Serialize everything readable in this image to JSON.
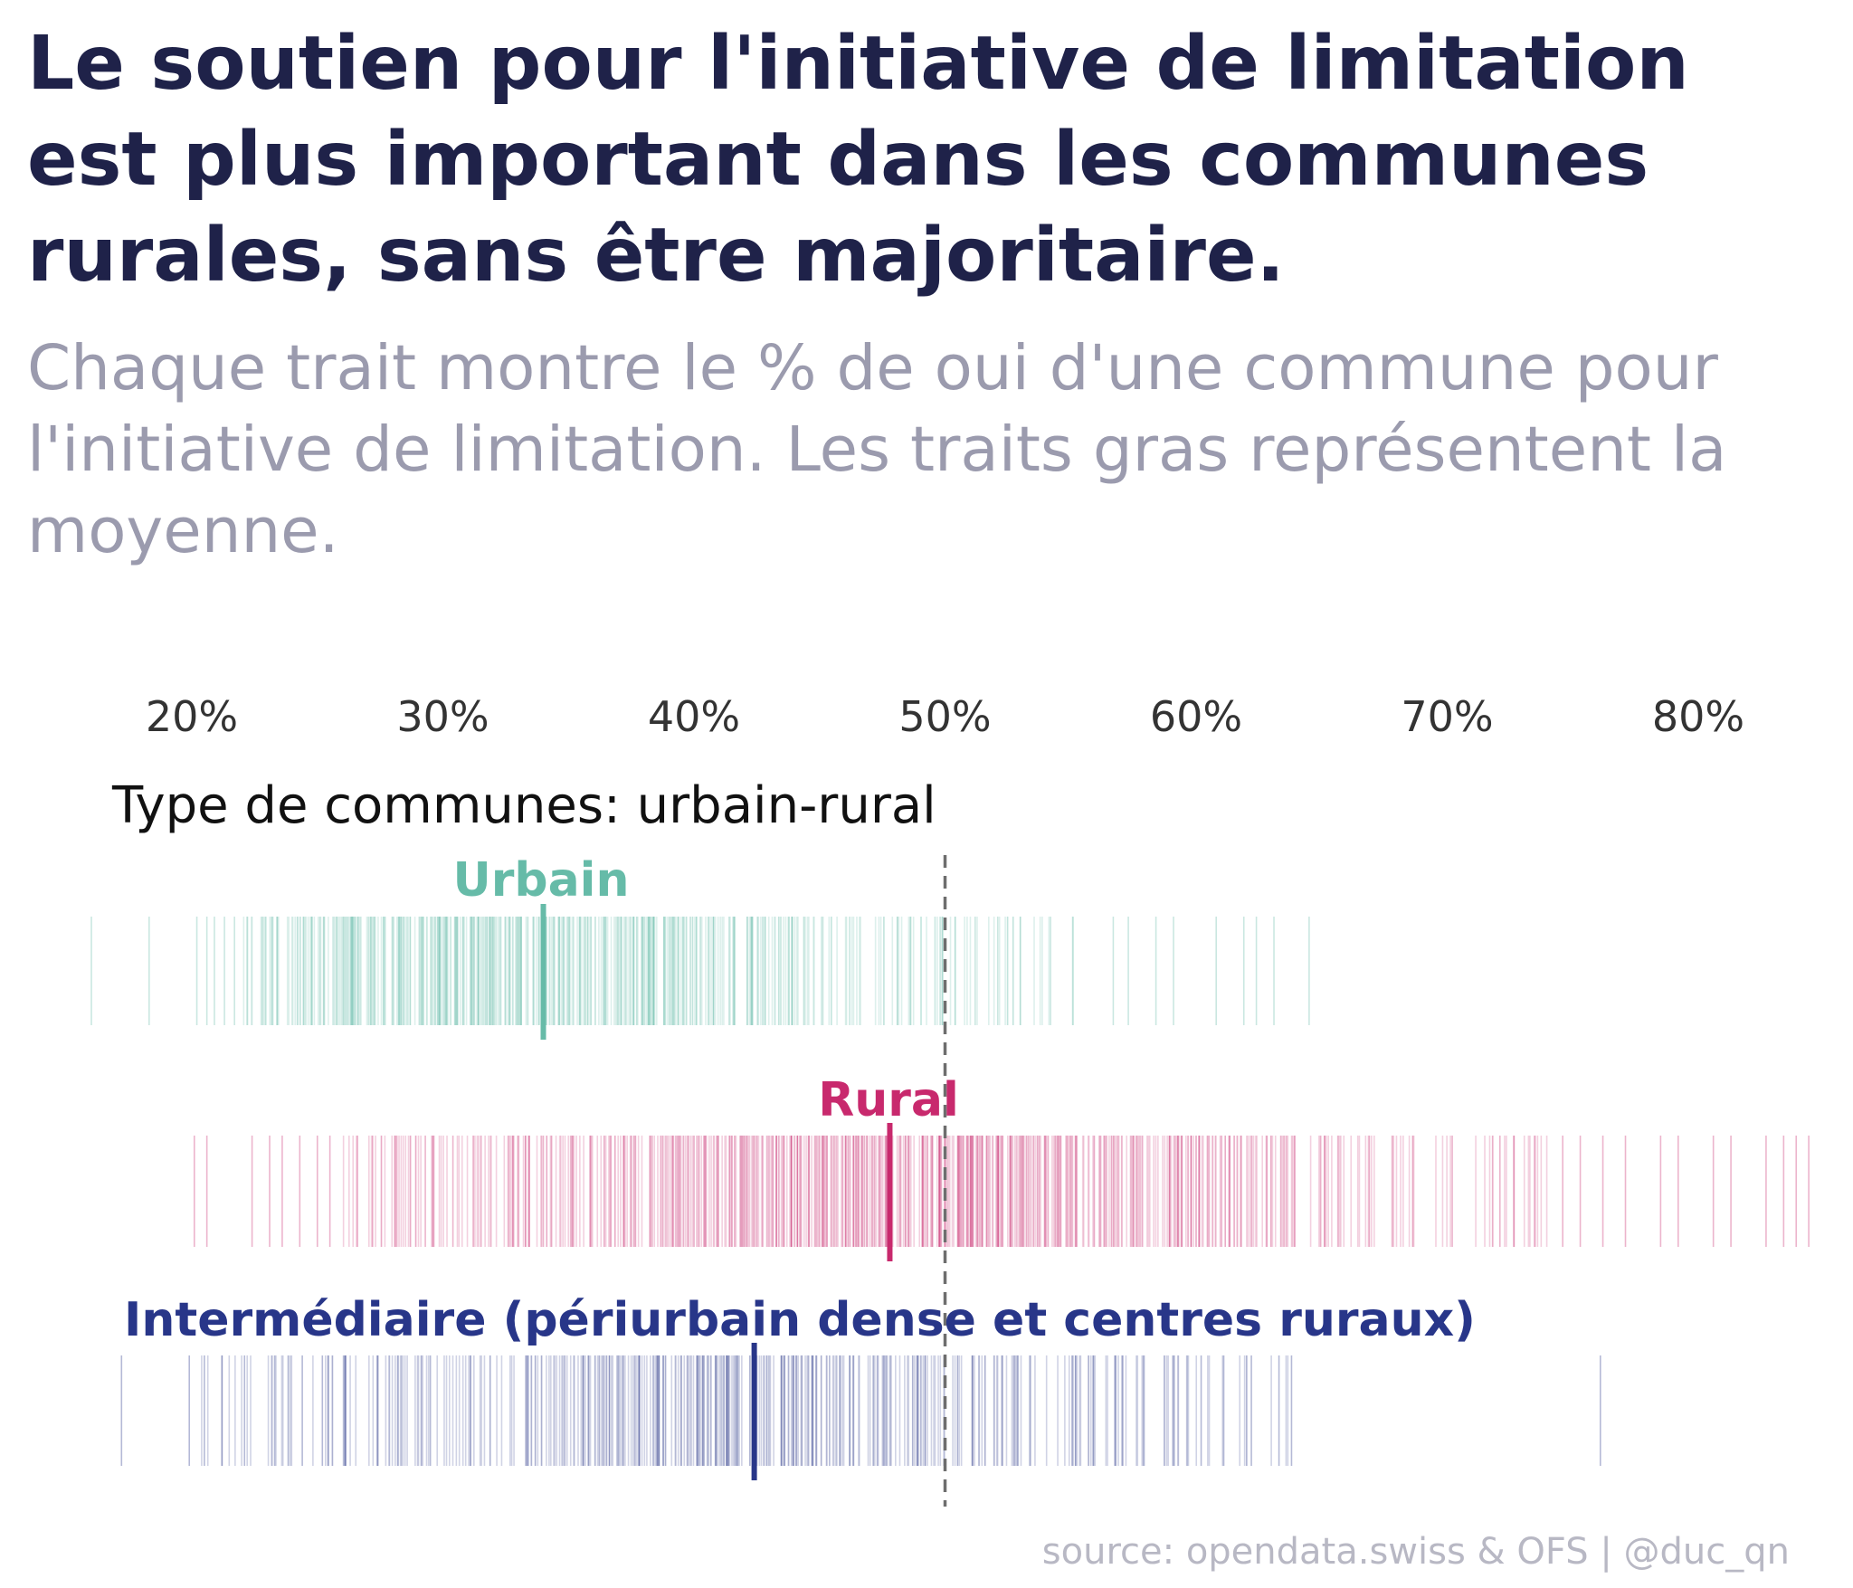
{
  "title": "Le soutien pour l'initiative de limitation est plus important dans les communes rurales, sans être majoritaire.",
  "subtitle": "Chaque trait montre le % de oui d'une commune pour l'initiative de limitation. Les traits gras représentent la moyenne.",
  "source": "source: opendata.swiss & OFS | @duc_qn",
  "colors": {
    "urbain": "#66bba8",
    "rural": "#c8296d",
    "intermediaire": "#283689",
    "reference": "#6e6e6e"
  },
  "chart_data": {
    "type": "strip",
    "facet_label": "Type de communes: urbain-rural",
    "x_ticks": [
      20,
      30,
      40,
      50,
      60,
      70,
      80
    ],
    "x_tick_labels": [
      "20%",
      "30%",
      "40%",
      "50%",
      "60%",
      "70%",
      "80%"
    ],
    "xlim": [
      16,
      86
    ],
    "reference_line": 50,
    "groups": [
      {
        "name": "Urbain",
        "mean": 34,
        "color_key": "urbain",
        "range": [
          16,
          64.5
        ],
        "dense_range": [
          22,
          56
        ],
        "values": [
          16,
          18.3,
          20.2,
          20.6,
          20.9,
          21.3,
          21.7,
          22.2,
          22.8,
          23.4,
          24.2,
          25.1,
          26.4,
          28.7,
          30.5,
          33.6,
          35.2,
          38.8,
          41.4,
          43.9,
          46.2,
          48.1,
          49.6,
          50.4,
          51.2,
          52.1,
          53,
          54.2,
          55.1,
          56.7,
          57.3,
          58.4,
          59.1,
          60.8,
          61.9,
          62.4,
          63.1,
          64.5
        ]
      },
      {
        "name": "Rural",
        "mean": 47.8,
        "color_key": "rural",
        "range": [
          20.1,
          84.4
        ],
        "dense_range": [
          26,
          74
        ],
        "values": [
          20.1,
          20.6,
          22.4,
          23.1,
          23.6,
          24.3,
          25,
          25.5,
          26.6,
          27.2,
          28.1,
          29.3,
          30.4,
          34,
          37.2,
          41.5,
          45.3,
          49.1,
          52.6,
          56.2,
          59.8,
          63.5,
          66.9,
          70.2,
          72.1,
          73.5,
          74.6,
          75.3,
          76.2,
          77.1,
          78.5,
          79.2,
          80.6,
          81.3,
          82.7,
          83.4,
          83.9,
          84.4
        ]
      },
      {
        "name": "Intermédiaire (périurbain dense et centres ruraux)",
        "mean": 42.4,
        "color_key": "intermediaire",
        "range": [
          17.2,
          76.1
        ],
        "dense_range": [
          20,
          63.8
        ],
        "values": [
          17.2,
          19.9,
          20.5,
          21.2,
          22.1,
          23.3,
          24.4,
          25.2,
          26.1,
          27.4,
          28.2,
          29.5,
          31.1,
          33.4,
          35.6,
          37.8,
          39.5,
          41.2,
          43.6,
          45.4,
          47.3,
          49.2,
          51.1,
          53.4,
          55.2,
          56.8,
          57.9,
          59.1,
          60.2,
          61.1,
          62.2,
          63.3,
          63.8,
          76.1
        ]
      }
    ]
  }
}
